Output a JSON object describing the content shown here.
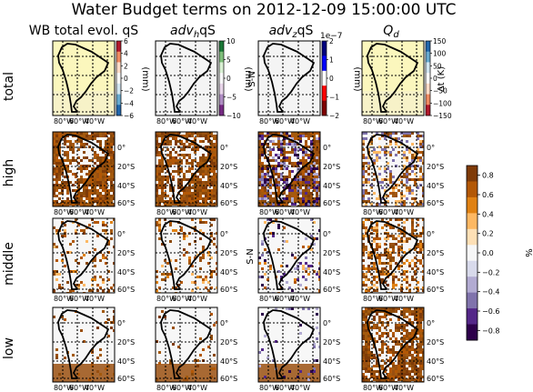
{
  "chart_data": {
    "type": "heatmap",
    "title": "Water Budget terms on 2012-12-09 15:00:00 UTC",
    "columns": [
      {
        "label": "WB total evol. qS",
        "math": false
      },
      {
        "label": "adv",
        "sub": "h",
        "tail": "qS",
        "math": true
      },
      {
        "label": "adv",
        "sub": "z",
        "tail": "qS",
        "math": true,
        "exp": "1e−7"
      },
      {
        "label": "Q",
        "sub": "d",
        "tail": "",
        "math": true
      }
    ],
    "rows": [
      "total",
      "high",
      "middle",
      "low"
    ],
    "ylabel_main": "S-N",
    "xlabel_main": "W-E",
    "units_mm": "(mm)",
    "lon_ticks": [
      "80°W",
      "60°W",
      "40°W"
    ],
    "lat_ticks": [
      "0°",
      "20°S",
      "40°S",
      "60°S"
    ],
    "total_colorbars": [
      {
        "ticks": [
          "6",
          "4",
          "2",
          "0",
          "−2",
          "−4",
          "−6"
        ],
        "min": -6,
        "max": 6,
        "colors": [
          "#b2182b",
          "#ef8a62",
          "#fddbc7",
          "#f7f7f7",
          "#d1e5f0",
          "#67a9cf",
          "#2166ac"
        ]
      },
      {
        "ticks": [
          "10",
          "5",
          "0",
          "−5",
          "−10"
        ],
        "min": -10,
        "max": 10,
        "colors": [
          "#1b7837",
          "#7fbf7b",
          "#d9f0d3",
          "#f7f7f7",
          "#e7d4e8",
          "#af8dc3",
          "#762a83"
        ]
      },
      {
        "ticks": [
          "2",
          "1",
          "0",
          "−1",
          "−2"
        ],
        "min": -2,
        "max": 2,
        "colors": [
          "#00007f",
          "#0000ff",
          "#ffffff",
          "#ff0000",
          "#7f0000"
        ]
      },
      {
        "ticks": [
          "150",
          "100",
          "50",
          "0",
          "−50",
          "−100",
          "−150"
        ],
        "min": -150,
        "max": 150,
        "colors": [
          "#2166ac",
          "#67a9cf",
          "#d1e5f0",
          "#f7f7f7",
          "#fddbc7",
          "#ef8a62",
          "#b2182b"
        ]
      }
    ],
    "dt_label": "Δt (K)",
    "pct_colorbar": {
      "label": "%",
      "ticks": [
        "0.8",
        "0.6",
        "0.4",
        "0.2",
        "0.0",
        "−0.2",
        "−0.4",
        "−0.6",
        "−0.8"
      ],
      "min": -0.9,
      "max": 0.9,
      "colors": [
        "#2d004b",
        "#542788",
        "#8073ac",
        "#b2abd2",
        "#d8daeb",
        "#f7f7f7",
        "#fee0b6",
        "#fdb863",
        "#e08214",
        "#b35806",
        "#7f3b08"
      ]
    }
  }
}
